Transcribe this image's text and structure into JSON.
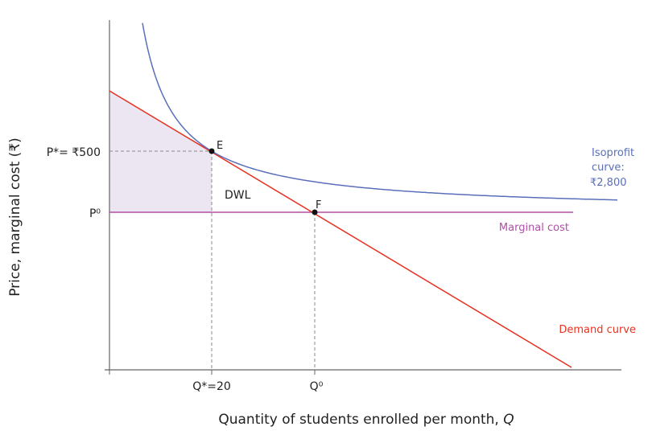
{
  "chart_data": {
    "type": "line",
    "xlabel": "Quantity of students enrolled per month, ",
    "xlabel_var": "Q",
    "ylabel": "Price, marginal cost (₹)",
    "x_ticks": [
      "Q*=20",
      "Q⁰"
    ],
    "y_ticks": [
      "P*= ₹500",
      "P⁰"
    ],
    "series": [
      {
        "name": "Demand curve",
        "color": "#e8311f"
      },
      {
        "name": "Marginal cost",
        "color": "#b04fa6"
      },
      {
        "name": "Isoprofit curve: ₹2,800",
        "name_lines": [
          "Isoprofit",
          "curve:",
          "₹2,800"
        ],
        "color": "#5a6fba"
      }
    ],
    "points": [
      {
        "label": "E",
        "Q": 20,
        "P": 500
      },
      {
        "label": "F"
      }
    ],
    "annotations": [
      "DWL"
    ],
    "shaded_area_color": "#ece6f2"
  }
}
